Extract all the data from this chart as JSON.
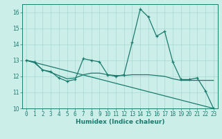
{
  "x": [
    0,
    1,
    2,
    3,
    4,
    5,
    6,
    7,
    8,
    9,
    10,
    11,
    12,
    13,
    14,
    15,
    16,
    17,
    18,
    19,
    20,
    21,
    22,
    23
  ],
  "line1": [
    13.0,
    12.9,
    12.4,
    12.3,
    11.9,
    11.7,
    11.8,
    13.1,
    13.0,
    12.9,
    12.1,
    12.0,
    12.1,
    14.1,
    16.2,
    15.7,
    14.5,
    14.8,
    12.9,
    11.8,
    11.8,
    11.9,
    11.1,
    10.0
  ],
  "line2": [
    13.0,
    12.85,
    12.4,
    12.25,
    12.05,
    11.85,
    11.9,
    12.1,
    12.2,
    12.2,
    12.1,
    12.05,
    12.05,
    12.1,
    12.1,
    12.1,
    12.05,
    12.0,
    11.85,
    11.75,
    11.75,
    11.75,
    11.75,
    11.75
  ],
  "line3_x": [
    0,
    23
  ],
  "line3_y": [
    13.0,
    10.0
  ],
  "xlim": [
    -0.5,
    23.5
  ],
  "ylim": [
    10,
    16.5
  ],
  "yticks": [
    10,
    11,
    12,
    13,
    14,
    15,
    16
  ],
  "xticks": [
    0,
    1,
    2,
    3,
    4,
    5,
    6,
    7,
    8,
    9,
    10,
    11,
    12,
    13,
    14,
    15,
    16,
    17,
    18,
    19,
    20,
    21,
    22,
    23
  ],
  "xlabel": "Humidex (Indice chaleur)",
  "bg_color": "#cceee8",
  "grid_color": "#aad8d2",
  "line_color": "#1a7a6e",
  "tick_fontsize": 5.5,
  "label_fontsize": 6.5
}
